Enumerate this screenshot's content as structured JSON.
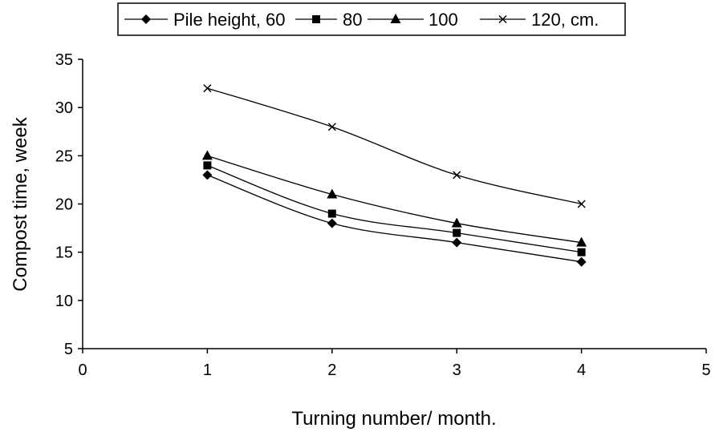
{
  "chart_data": {
    "type": "line",
    "xlabel": "Turning number/ month.",
    "ylabel": "Compost time, week",
    "xlim": [
      0,
      5
    ],
    "ylim": [
      5,
      35
    ],
    "xticks": [
      0,
      1,
      2,
      3,
      4,
      5
    ],
    "yticks": [
      5,
      10,
      15,
      20,
      25,
      30,
      35
    ],
    "grid": false,
    "legend_position": "top",
    "x": [
      1,
      2,
      3,
      4
    ],
    "series": [
      {
        "name": "Pile height, 60",
        "marker": "diamond",
        "values": [
          23,
          18,
          16,
          14
        ]
      },
      {
        "name": "80",
        "marker": "square",
        "values": [
          24,
          19,
          17,
          15
        ]
      },
      {
        "name": "100",
        "marker": "triangle",
        "values": [
          25,
          21,
          18,
          16
        ]
      },
      {
        "name": "120, cm.",
        "marker": "x",
        "values": [
          32,
          28,
          23,
          20
        ]
      }
    ]
  }
}
